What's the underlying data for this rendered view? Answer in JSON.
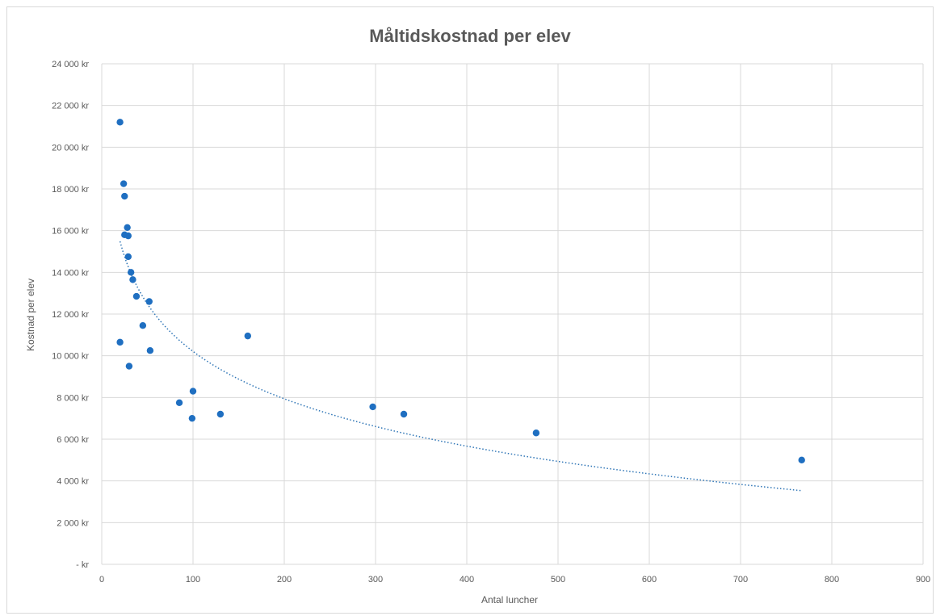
{
  "chart_data": {
    "type": "scatter",
    "title": "Måltidskostnad per elev",
    "xlabel": "Antal luncher",
    "ylabel": "Kostnad per elev",
    "xlim": [
      0,
      900
    ],
    "ylim": [
      0,
      24000
    ],
    "x_ticks": [
      0,
      100,
      200,
      300,
      400,
      500,
      600,
      700,
      800,
      900
    ],
    "x_tick_labels": [
      "0",
      "100",
      "200",
      "300",
      "400",
      "500",
      "600",
      "700",
      "800",
      "900"
    ],
    "y_ticks": [
      0,
      2000,
      4000,
      6000,
      8000,
      10000,
      12000,
      14000,
      16000,
      18000,
      20000,
      22000,
      24000
    ],
    "y_tick_labels": [
      "-   kr",
      "2 000 kr",
      "4 000 kr",
      "6 000 kr",
      "8 000 kr",
      "10 000 kr",
      "12 000 kr",
      "14 000 kr",
      "16 000 kr",
      "18 000 kr",
      "20 000 kr",
      "22 000 kr",
      "24 000 kr"
    ],
    "grid": true,
    "legend": false,
    "point_color": "#1f6fc1",
    "trendline_color": "#2e75b6",
    "trendline": {
      "type": "logarithmic",
      "style": "dotted"
    },
    "points": [
      {
        "x": 20,
        "y": 21200
      },
      {
        "x": 24,
        "y": 18250
      },
      {
        "x": 25,
        "y": 17650
      },
      {
        "x": 28,
        "y": 16150
      },
      {
        "x": 25,
        "y": 15800
      },
      {
        "x": 29,
        "y": 15750
      },
      {
        "x": 29,
        "y": 14750
      },
      {
        "x": 32,
        "y": 14000
      },
      {
        "x": 34,
        "y": 13650
      },
      {
        "x": 38,
        "y": 12850
      },
      {
        "x": 52,
        "y": 12600
      },
      {
        "x": 45,
        "y": 11450
      },
      {
        "x": 20,
        "y": 10650
      },
      {
        "x": 53,
        "y": 10250
      },
      {
        "x": 30,
        "y": 9500
      },
      {
        "x": 85,
        "y": 7750
      },
      {
        "x": 100,
        "y": 8300
      },
      {
        "x": 99,
        "y": 7000
      },
      {
        "x": 130,
        "y": 7200
      },
      {
        "x": 160,
        "y": 10950
      },
      {
        "x": 297,
        "y": 7550
      },
      {
        "x": 331,
        "y": 7200
      },
      {
        "x": 476,
        "y": 6300
      },
      {
        "x": 767,
        "y": 5000
      }
    ]
  }
}
